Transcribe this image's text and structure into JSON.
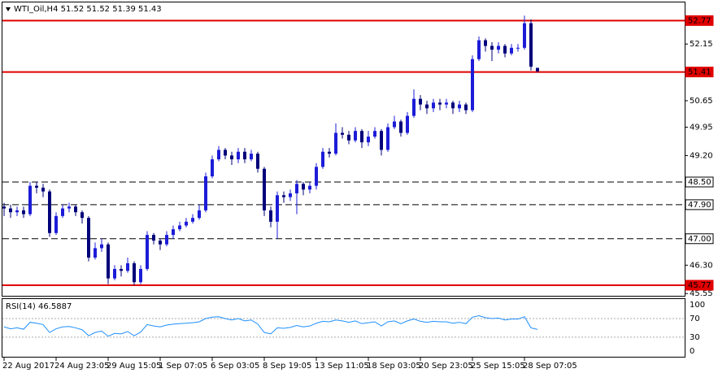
{
  "chart_data": {
    "type": "candlestick",
    "title": "WTI_Oil,H4  51.52 51.52 51.39 51.43",
    "categories": [
      "22 Aug 2017",
      null,
      null,
      null,
      null,
      null,
      null,
      null,
      "24 Aug 23:05",
      null,
      null,
      null,
      null,
      null,
      null,
      null,
      "29 Aug 15:05",
      null,
      null,
      null,
      null,
      null,
      null,
      null,
      "1 Sep 07:05",
      null,
      null,
      null,
      null,
      null,
      null,
      null,
      "6 Sep 03:05",
      null,
      null,
      null,
      null,
      null,
      null,
      null,
      "8 Sep 19:05",
      null,
      null,
      null,
      null,
      null,
      null,
      null,
      "13 Sep 11:05",
      null,
      null,
      null,
      null,
      null,
      null,
      null,
      "18 Sep 03:05",
      null,
      null,
      null,
      null,
      null,
      null,
      null,
      "20 Sep 23:05",
      null,
      null,
      null,
      null,
      null,
      null,
      null,
      "25 Sep 15:05",
      null,
      null,
      null,
      null,
      null,
      null,
      null,
      "28 Sep 07:05",
      null,
      null
    ],
    "open": [
      47.85,
      47.8,
      47.7,
      47.75,
      47.65,
      48.4,
      48.35,
      48.25,
      47.15,
      47.6,
      47.8,
      47.85,
      47.7,
      47.55,
      46.5,
      46.75,
      46.85,
      45.95,
      46.2,
      46.15,
      46.35,
      45.85,
      46.2,
      47.1,
      46.95,
      46.85,
      47.1,
      47.25,
      47.35,
      47.45,
      47.55,
      47.75,
      48.65,
      49.1,
      49.35,
      49.2,
      49.1,
      49.3,
      49.1,
      49.25,
      48.85,
      47.75,
      47.45,
      48.15,
      48.1,
      48.2,
      48.45,
      48.3,
      48.4,
      48.9,
      49.3,
      49.25,
      49.8,
      49.75,
      49.6,
      49.85,
      49.55,
      49.7,
      49.85,
      49.35,
      49.95,
      50.1,
      49.8,
      50.25,
      50.7,
      50.55,
      50.45,
      50.6,
      50.55,
      50.6,
      50.45,
      50.55,
      50.4,
      51.75,
      52.25,
      52.1,
      52.0,
      52.1,
      51.9,
      52.05,
      52.05,
      52.7,
      51.52
    ],
    "high": [
      47.95,
      47.9,
      47.85,
      47.85,
      48.5,
      48.5,
      48.45,
      48.3,
      47.7,
      47.9,
      47.95,
      47.9,
      47.75,
      47.6,
      46.9,
      47.0,
      46.9,
      46.3,
      46.3,
      46.5,
      46.4,
      46.3,
      47.2,
      47.15,
      47.0,
      47.2,
      47.35,
      47.45,
      47.55,
      47.65,
      47.9,
      48.75,
      49.2,
      49.45,
      49.4,
      49.3,
      49.4,
      49.4,
      49.35,
      49.3,
      48.9,
      47.85,
      48.25,
      48.25,
      48.3,
      48.55,
      48.5,
      48.5,
      49.0,
      49.4,
      49.4,
      50.05,
      49.95,
      49.85,
      49.95,
      49.9,
      49.85,
      49.95,
      49.9,
      50.05,
      50.25,
      50.15,
      50.35,
      50.95,
      50.8,
      50.65,
      50.7,
      50.7,
      50.7,
      50.65,
      50.65,
      50.6,
      51.85,
      52.35,
      52.3,
      52.2,
      52.2,
      52.15,
      52.15,
      52.15,
      52.9,
      52.8,
      51.52
    ],
    "low": [
      47.6,
      47.55,
      47.6,
      47.55,
      47.6,
      48.2,
      48.1,
      47.05,
      47.1,
      47.55,
      47.7,
      47.6,
      47.4,
      46.4,
      46.45,
      46.65,
      45.8,
      45.9,
      46.0,
      46.1,
      45.77,
      45.8,
      46.15,
      46.85,
      46.7,
      46.8,
      47.0,
      47.2,
      47.3,
      47.4,
      47.5,
      47.7,
      48.6,
      49.05,
      49.1,
      48.95,
      49.0,
      49.0,
      49.05,
      48.75,
      47.6,
      47.3,
      47.0,
      47.95,
      48.0,
      47.65,
      48.15,
      48.2,
      48.3,
      48.85,
      49.15,
      49.2,
      49.65,
      49.5,
      49.55,
      49.4,
      49.45,
      49.65,
      49.2,
      49.3,
      49.9,
      49.7,
      49.75,
      50.2,
      50.4,
      50.3,
      50.35,
      50.4,
      50.45,
      50.3,
      50.35,
      50.3,
      50.35,
      51.7,
      51.95,
      51.7,
      51.9,
      51.8,
      51.85,
      51.95,
      52.0,
      51.45,
      51.39
    ],
    "close": [
      47.8,
      47.7,
      47.75,
      47.65,
      48.4,
      48.35,
      48.25,
      47.15,
      47.6,
      47.8,
      47.85,
      47.7,
      47.55,
      46.5,
      46.75,
      46.85,
      45.95,
      46.2,
      46.15,
      46.35,
      45.85,
      46.2,
      47.1,
      46.95,
      46.85,
      47.1,
      47.25,
      47.35,
      47.45,
      47.55,
      47.75,
      48.65,
      49.1,
      49.35,
      49.2,
      49.1,
      49.3,
      49.1,
      49.25,
      48.85,
      47.75,
      47.45,
      48.15,
      48.1,
      48.2,
      48.45,
      48.3,
      48.4,
      48.9,
      49.3,
      49.25,
      49.8,
      49.75,
      49.6,
      49.85,
      49.55,
      49.7,
      49.85,
      49.35,
      49.95,
      50.1,
      49.8,
      50.25,
      50.7,
      50.55,
      50.45,
      50.6,
      50.55,
      50.6,
      50.45,
      50.55,
      50.4,
      51.75,
      52.25,
      52.1,
      52.0,
      52.1,
      51.9,
      52.05,
      52.05,
      52.7,
      51.55,
      51.43
    ],
    "up_color": "#1c1cd8",
    "down_color": "#00007a",
    "ylim": [
      45.49,
      53.25
    ],
    "yticks": [
      52.15,
      50.65,
      49.95,
      {
        "value": 49.2,
        "label": "49.20"
      },
      {
        "value": 46.3,
        "label": "46.30"
      },
      45.55
    ],
    "levels": [
      {
        "value": 52.77,
        "color": "#e00000",
        "style": "solid"
      },
      {
        "value": 51.41,
        "color": "#e00000",
        "style": "solid"
      },
      {
        "value": 48.5,
        "label": "48.50",
        "color": "#000000",
        "style": "dashed"
      },
      {
        "value": 47.9,
        "label": "47.90",
        "color": "#000000",
        "style": "dashed"
      },
      {
        "value": 47,
        "label": "47.00",
        "color": "#000000",
        "style": "dashed"
      },
      {
        "value": 45.77,
        "color": "#e00000",
        "style": "solid"
      }
    ],
    "rsi": {
      "title": "RSI(14) 46.5887",
      "color": "#1e90ff",
      "ylim": [
        -14,
        112
      ],
      "yticks": [
        100,
        70,
        30,
        0
      ],
      "guides": [
        70,
        30
      ],
      "values": [
        52,
        48,
        50,
        47,
        62,
        60,
        57,
        40,
        48,
        52,
        53,
        50,
        46,
        33,
        40,
        43,
        32,
        38,
        37,
        42,
        33,
        41,
        57,
        54,
        52,
        56,
        58,
        59,
        60,
        61,
        63,
        70,
        73,
        74,
        70,
        67,
        70,
        65,
        67,
        58,
        40,
        37,
        50,
        49,
        51,
        55,
        52,
        54,
        60,
        64,
        63,
        67,
        65,
        62,
        65,
        59,
        61,
        63,
        54,
        63,
        65,
        59,
        65,
        69,
        64,
        62,
        64,
        63,
        63,
        60,
        62,
        59,
        73,
        76,
        72,
        70,
        71,
        67,
        69,
        69,
        74,
        50,
        46.5887
      ]
    }
  }
}
